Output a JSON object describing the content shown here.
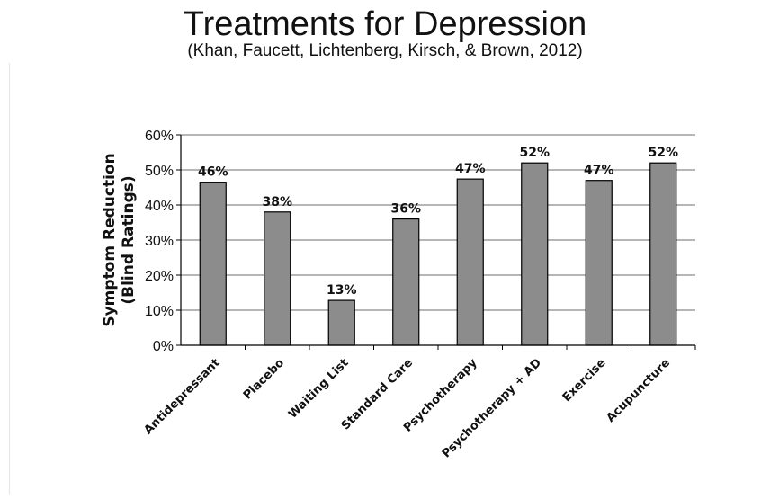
{
  "chart_data": {
    "type": "bar",
    "title": "Treatments for Depression",
    "subtitle": "(Khan,  Faucett, Lichtenberg,  Kirsch, & Brown, 2012)",
    "ylabel_line1": "Symptom Reduction",
    "ylabel_line2": "(Blind Ratings)",
    "xlabel": "",
    "ylim": [
      0,
      60
    ],
    "yticks": [
      "0%",
      "10%",
      "20%",
      "30%",
      "40%",
      "50%",
      "60%"
    ],
    "grid": true,
    "bar_color": "#8c8c8c",
    "categories": [
      "Antidepressant",
      "Placebo",
      "Waiting List",
      "Standard Care",
      "Psychotherapy",
      "Psychotherapy + AD",
      "Exercise",
      "Acupuncture"
    ],
    "values": [
      46.5,
      38,
      12.8,
      36,
      47.4,
      52,
      47,
      52
    ],
    "data_labels": [
      "46%",
      "38%",
      "13%",
      "36%",
      "47%",
      "52%",
      "47%",
      "52%"
    ]
  }
}
